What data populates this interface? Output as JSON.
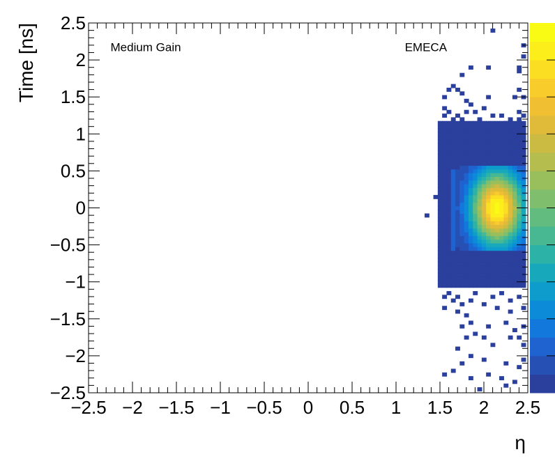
{
  "chart_data": {
    "type": "heatmap",
    "title": "",
    "xlabel": "η",
    "ylabel": "Time [ns]",
    "xlim": [
      -2.5,
      2.5
    ],
    "ylim": [
      -2.5,
      2.5
    ],
    "x_ticks": [
      -2.5,
      -2,
      -1.5,
      -1,
      -0.5,
      0,
      0.5,
      1,
      1.5,
      2,
      2.5
    ],
    "x_tick_labels": [
      "−2.5",
      "−2",
      "−1.5",
      "−1",
      "−0.5",
      "0",
      "0.5",
      "1",
      "1.5",
      "2",
      "2.5"
    ],
    "y_ticks": [
      -2.5,
      -2,
      -1.5,
      -1,
      -0.5,
      0,
      0.5,
      1,
      1.5,
      2,
      2.5
    ],
    "y_tick_labels": [
      "−2.5",
      "−2",
      "−1.5",
      "−1",
      "−0.5",
      "0",
      "0.5",
      "1",
      "1.5",
      "2",
      "2.5"
    ],
    "annotations": [
      {
        "text": "Medium Gain",
        "x": -2.25,
        "y": 2.12
      },
      {
        "text": "EMECA",
        "x": 1.1,
        "y": 2.12
      }
    ],
    "grid": false,
    "colorbar": true,
    "colorscale": [
      "#2b3f9d",
      "#2750b5",
      "#1f63d0",
      "#1378db",
      "#0c8bd9",
      "#0d9ccc",
      "#18a8bb",
      "#2db2a8",
      "#48b893",
      "#62bc7f",
      "#7ebe6c",
      "#99be5c",
      "#b4bd4d",
      "#ccbb42",
      "#e0bb3a",
      "#f0c032",
      "#f8cc2a",
      "#fbdd22",
      "#fcee1a",
      "#f9fb14"
    ],
    "bin_width": 0.05,
    "core_region": {
      "x": [
        1.5,
        2.45
      ],
      "y": [
        -1.05,
        1.15
      ],
      "level": 0
    },
    "peak": {
      "x": 2.15,
      "y": 0.0,
      "sigma_x": 0.2,
      "sigma_y": 0.34
    },
    "pulse_region": {
      "x": [
        1.7,
        2.45
      ],
      "y": [
        -0.55,
        0.55
      ]
    },
    "cells": [
      [
        2.1,
        2.4
      ],
      [
        2.45,
        2.2
      ],
      [
        2.45,
        2.05
      ],
      [
        2.4,
        1.9
      ],
      [
        1.85,
        1.9
      ],
      [
        2.05,
        1.9
      ],
      [
        1.75,
        1.8
      ],
      [
        2.4,
        1.85
      ],
      [
        1.55,
        1.5
      ],
      [
        1.6,
        1.6
      ],
      [
        1.65,
        1.65
      ],
      [
        1.7,
        1.6
      ],
      [
        1.75,
        1.55
      ],
      [
        1.8,
        1.45
      ],
      [
        1.85,
        1.4
      ],
      [
        2.05,
        1.5
      ],
      [
        2.4,
        1.6
      ],
      [
        2.35,
        1.5
      ],
      [
        2.4,
        1.3
      ],
      [
        1.9,
        1.3
      ],
      [
        2.0,
        1.35
      ],
      [
        1.95,
        1.2
      ],
      [
        2.1,
        1.25
      ],
      [
        2.2,
        1.25
      ],
      [
        2.3,
        1.2
      ],
      [
        2.4,
        1.2
      ],
      [
        1.55,
        1.35
      ],
      [
        1.55,
        1.25
      ],
      [
        1.6,
        1.3
      ],
      [
        1.65,
        1.2
      ],
      [
        1.7,
        1.25
      ],
      [
        1.75,
        1.2
      ],
      [
        1.8,
        1.3
      ],
      [
        2.15,
        1.1
      ],
      [
        2.25,
        1.15
      ],
      [
        2.35,
        1.1
      ],
      [
        1.45,
        0.15
      ],
      [
        1.35,
        -0.1
      ],
      [
        2.45,
        1.25
      ],
      [
        2.45,
        1.5
      ],
      [
        1.55,
        -1.2
      ],
      [
        1.6,
        -1.15
      ],
      [
        1.65,
        -1.25
      ],
      [
        1.7,
        -1.2
      ],
      [
        1.75,
        -1.3
      ],
      [
        1.85,
        -1.25
      ],
      [
        1.9,
        -1.15
      ],
      [
        2.0,
        -1.3
      ],
      [
        2.1,
        -1.2
      ],
      [
        2.2,
        -1.15
      ],
      [
        2.3,
        -1.25
      ],
      [
        2.4,
        -1.2
      ],
      [
        1.55,
        -1.35
      ],
      [
        1.7,
        -1.4
      ],
      [
        1.8,
        -1.45
      ],
      [
        2.15,
        -1.35
      ],
      [
        2.3,
        -1.4
      ],
      [
        2.45,
        -1.35
      ],
      [
        1.75,
        -1.6
      ],
      [
        1.85,
        -1.55
      ],
      [
        1.9,
        -1.7
      ],
      [
        2.05,
        -1.6
      ],
      [
        2.25,
        -1.55
      ],
      [
        2.35,
        -1.65
      ],
      [
        2.45,
        -1.6
      ],
      [
        2.3,
        -1.75
      ],
      [
        2.4,
        -1.75
      ],
      [
        1.8,
        -1.75
      ],
      [
        2.0,
        -1.75
      ],
      [
        1.7,
        -1.9
      ],
      [
        1.85,
        -2.0
      ],
      [
        2.1,
        -1.85
      ],
      [
        2.45,
        -1.85
      ],
      [
        1.75,
        -2.1
      ],
      [
        1.65,
        -2.2
      ],
      [
        2.0,
        -2.05
      ],
      [
        2.25,
        -2.1
      ],
      [
        1.55,
        -2.25
      ],
      [
        2.2,
        -2.3
      ],
      [
        2.05,
        -2.25
      ],
      [
        2.4,
        -2.15
      ],
      [
        2.25,
        -2.4
      ],
      [
        2.35,
        -2.35
      ],
      [
        1.95,
        -2.45
      ],
      [
        1.85,
        -2.3
      ],
      [
        2.45,
        -2.05
      ]
    ]
  }
}
